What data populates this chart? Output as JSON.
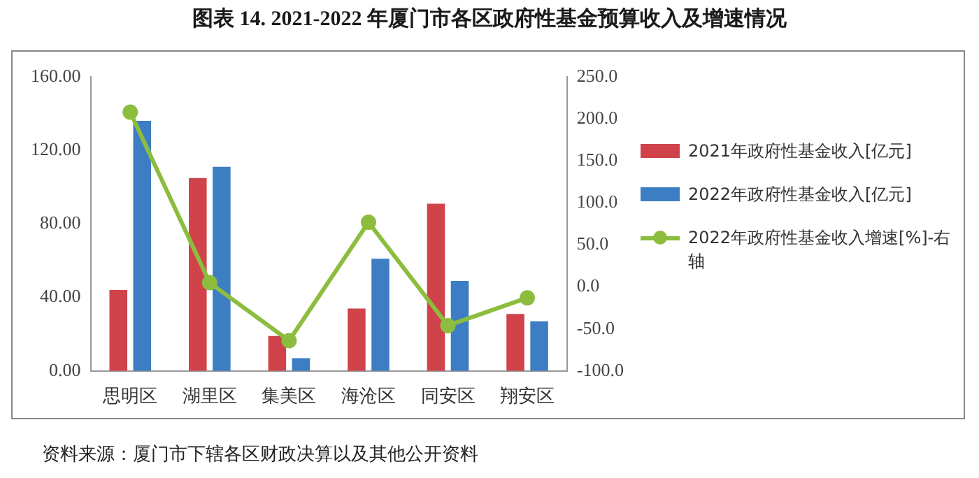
{
  "chart_data": {
    "type": "bar",
    "title": "图表 14. 2021-2022 年厦门市各区政府性基金预算收入及增速情况",
    "categories": [
      "思明区",
      "湖里区",
      "集美区",
      "海沧区",
      "同安区",
      "翔安区"
    ],
    "series": [
      {
        "name": "2021年政府性基金收入[亿元]",
        "color": "#d0434a",
        "values": [
          44,
          105,
          19,
          34,
          91,
          31
        ]
      },
      {
        "name": "2022年政府性基金收入[亿元]",
        "color": "#3c7dc4",
        "values": [
          136,
          111,
          7,
          61,
          49,
          27
        ]
      },
      {
        "name": "2022年政府性基金收入增速[%]-右轴",
        "type": "line",
        "axis": "y2",
        "color": "#8cbd3f",
        "marker": "circle",
        "values": [
          208,
          5,
          -64,
          77,
          -46,
          -13
        ]
      }
    ],
    "ylim": [
      0,
      160
    ],
    "yticks": [
      {
        "value": 0,
        "label": "0.00"
      },
      {
        "value": 40,
        "label": "40.00"
      },
      {
        "value": 80,
        "label": "80.00"
      },
      {
        "value": 120,
        "label": "120.00"
      },
      {
        "value": 160,
        "label": "160.00"
      }
    ],
    "y2lim": [
      -100,
      250
    ],
    "y2ticks": [
      {
        "value": -100,
        "label": "-100.0"
      },
      {
        "value": -50,
        "label": "-50.0"
      },
      {
        "value": 0,
        "label": "0.0"
      },
      {
        "value": 50,
        "label": "50.0"
      },
      {
        "value": 100,
        "label": "100.0"
      },
      {
        "value": 150,
        "label": "150.0"
      },
      {
        "value": 200,
        "label": "200.0"
      },
      {
        "value": 250,
        "label": "250.0"
      }
    ],
    "grid": false,
    "legend": "right",
    "annotations": [
      "资料来源：厦门市下辖各区财政决算以及其他公开资料"
    ]
  }
}
